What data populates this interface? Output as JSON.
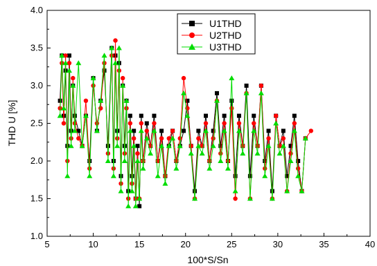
{
  "chart_data": {
    "type": "line",
    "title": "",
    "xlabel": "100*S/Sn",
    "ylabel": "THD U [%]",
    "xlim": [
      5,
      40
    ],
    "ylim": [
      1.0,
      4.0
    ],
    "xticks": [
      "5",
      "10",
      "15",
      "20",
      "25",
      "30",
      "35",
      "40"
    ],
    "yticks": [
      "1.0",
      "1.5",
      "2.0",
      "2.5",
      "3.0",
      "3.5",
      "4.0"
    ],
    "grid": false,
    "legend_position": "top-right",
    "series": [
      {
        "name": "U1THD",
        "color": "#000000",
        "marker": "square",
        "x": [
          6.4,
          6.6,
          6.8,
          7.0,
          7.2,
          7.4,
          7.6,
          7.8,
          8.0,
          8.4,
          8.8,
          9.2,
          9.6,
          10.0,
          10.4,
          10.8,
          11.2,
          11.6,
          12.0,
          12.2,
          12.4,
          12.6,
          12.8,
          13.0,
          13.2,
          13.4,
          13.6,
          13.8,
          14.0,
          14.2,
          14.4,
          14.6,
          14.8,
          15.0,
          15.2,
          15.4,
          15.8,
          16.2,
          16.6,
          17.0,
          17.4,
          17.8,
          18.2,
          18.6,
          19.0,
          19.4,
          19.8,
          20.2,
          20.6,
          21.0,
          21.4,
          21.8,
          22.2,
          22.6,
          23.0,
          23.4,
          23.8,
          24.2,
          24.6,
          25.0,
          25.4,
          25.8,
          26.2,
          26.6,
          27.0,
          27.4,
          27.8,
          28.2,
          28.6,
          29.0,
          29.4,
          29.8,
          30.2,
          30.6,
          31.0,
          31.4,
          31.8,
          32.2,
          32.6,
          33.0
        ],
        "y": [
          2.8,
          3.4,
          2.6,
          3.2,
          2.2,
          3.4,
          2.4,
          3.0,
          2.6,
          2.4,
          2.2,
          2.6,
          2.0,
          3.1,
          2.4,
          2.8,
          3.2,
          2.2,
          3.5,
          2.0,
          3.4,
          2.4,
          3.3,
          1.8,
          3.0,
          2.2,
          2.8,
          1.6,
          2.6,
          1.8,
          2.4,
          1.5,
          2.2,
          1.4,
          2.6,
          2.0,
          2.5,
          2.2,
          2.6,
          2.0,
          2.4,
          1.8,
          2.2,
          2.4,
          2.0,
          2.2,
          2.4,
          2.8,
          2.2,
          1.6,
          2.4,
          2.2,
          2.6,
          2.0,
          2.4,
          2.9,
          2.2,
          2.6,
          2.0,
          2.8,
          1.8,
          2.6,
          2.2,
          3.0,
          1.8,
          2.6,
          2.2,
          3.0,
          2.0,
          2.4,
          1.6,
          2.6,
          2.2,
          2.4,
          1.8,
          2.2,
          2.6,
          2.0,
          1.6,
          2.3
        ]
      },
      {
        "name": "U2THD",
        "color": "#ff0000",
        "marker": "circle",
        "x": [
          6.4,
          6.6,
          6.8,
          7.0,
          7.2,
          7.4,
          7.6,
          7.8,
          8.0,
          8.4,
          8.8,
          9.2,
          9.6,
          10.0,
          10.4,
          10.8,
          11.2,
          11.6,
          12.0,
          12.2,
          12.4,
          12.6,
          12.8,
          13.0,
          13.2,
          13.4,
          13.6,
          13.8,
          14.0,
          14.2,
          14.4,
          14.6,
          14.8,
          15.0,
          15.2,
          15.4,
          15.8,
          16.2,
          16.6,
          17.0,
          17.4,
          17.8,
          18.2,
          18.6,
          19.0,
          19.4,
          19.8,
          20.2,
          20.6,
          21.0,
          21.4,
          21.8,
          22.2,
          22.6,
          23.0,
          23.4,
          23.8,
          24.2,
          24.6,
          25.0,
          25.4,
          25.8,
          26.2,
          26.6,
          27.0,
          27.4,
          27.8,
          28.2,
          28.6,
          29.0,
          29.4,
          29.8,
          30.2,
          30.6,
          31.0,
          31.4,
          31.8,
          32.2,
          32.6,
          33.0,
          33.6
        ],
        "y": [
          2.7,
          3.3,
          2.5,
          3.4,
          2.0,
          3.3,
          2.3,
          3.1,
          2.5,
          2.3,
          2.2,
          2.8,
          1.9,
          3.0,
          2.5,
          2.7,
          3.3,
          2.1,
          3.4,
          1.9,
          3.6,
          2.3,
          3.2,
          1.7,
          3.1,
          2.1,
          2.7,
          1.5,
          2.5,
          1.7,
          2.3,
          1.5,
          2.1,
          1.5,
          2.5,
          2.0,
          2.4,
          2.2,
          2.5,
          2.0,
          2.3,
          1.8,
          2.3,
          2.4,
          2.0,
          2.3,
          3.1,
          2.7,
          2.2,
          1.5,
          2.3,
          2.2,
          2.5,
          2.0,
          2.3,
          2.8,
          2.1,
          2.5,
          2.0,
          2.7,
          1.5,
          2.5,
          2.2,
          2.9,
          1.5,
          2.5,
          2.2,
          3.0,
          1.9,
          2.3,
          1.5,
          2.6,
          2.2,
          2.3,
          1.6,
          2.1,
          2.5,
          1.9,
          1.6,
          2.3,
          2.4
        ]
      },
      {
        "name": "U3THD",
        "color": "#00dd00",
        "marker": "triangle",
        "x": [
          6.4,
          6.6,
          6.8,
          7.0,
          7.2,
          7.4,
          7.6,
          7.8,
          8.0,
          8.4,
          8.8,
          9.2,
          9.6,
          10.0,
          10.4,
          10.8,
          11.2,
          11.6,
          12.0,
          12.2,
          12.4,
          12.6,
          12.8,
          13.0,
          13.2,
          13.4,
          13.6,
          13.8,
          14.0,
          14.2,
          14.4,
          14.6,
          14.8,
          15.0,
          15.2,
          15.4,
          15.8,
          16.2,
          16.6,
          17.0,
          17.4,
          17.8,
          18.2,
          18.6,
          19.0,
          19.4,
          19.8,
          20.2,
          20.6,
          21.0,
          21.4,
          21.8,
          22.2,
          22.6,
          23.0,
          23.4,
          23.8,
          24.2,
          24.6,
          25.0,
          25.4,
          25.8,
          26.2,
          26.6,
          27.0,
          27.4,
          27.8,
          28.2,
          28.6,
          29.0,
          29.4,
          29.8,
          30.2,
          30.6,
          31.0,
          31.4,
          31.8,
          32.2,
          32.6,
          33.0
        ],
        "y": [
          2.6,
          3.4,
          2.7,
          3.3,
          1.8,
          3.2,
          2.2,
          3.0,
          2.4,
          3.3,
          2.2,
          2.6,
          1.8,
          3.1,
          2.4,
          2.8,
          3.4,
          2.0,
          3.5,
          1.8,
          3.3,
          2.2,
          3.5,
          1.6,
          3.0,
          2.0,
          2.8,
          1.4,
          2.4,
          1.6,
          2.2,
          1.4,
          2.0,
          1.5,
          2.4,
          1.9,
          2.3,
          2.1,
          2.4,
          1.8,
          2.2,
          1.7,
          2.2,
          2.3,
          1.9,
          2.2,
          2.9,
          2.6,
          2.1,
          1.5,
          2.2,
          2.1,
          2.4,
          1.9,
          2.2,
          2.8,
          2.0,
          2.4,
          1.9,
          3.1,
          1.6,
          2.4,
          2.1,
          2.9,
          1.5,
          2.4,
          2.1,
          2.9,
          1.8,
          2.2,
          1.5,
          2.5,
          2.1,
          2.2,
          1.6,
          2.0,
          2.4,
          1.8,
          1.6,
          2.3
        ]
      }
    ]
  }
}
